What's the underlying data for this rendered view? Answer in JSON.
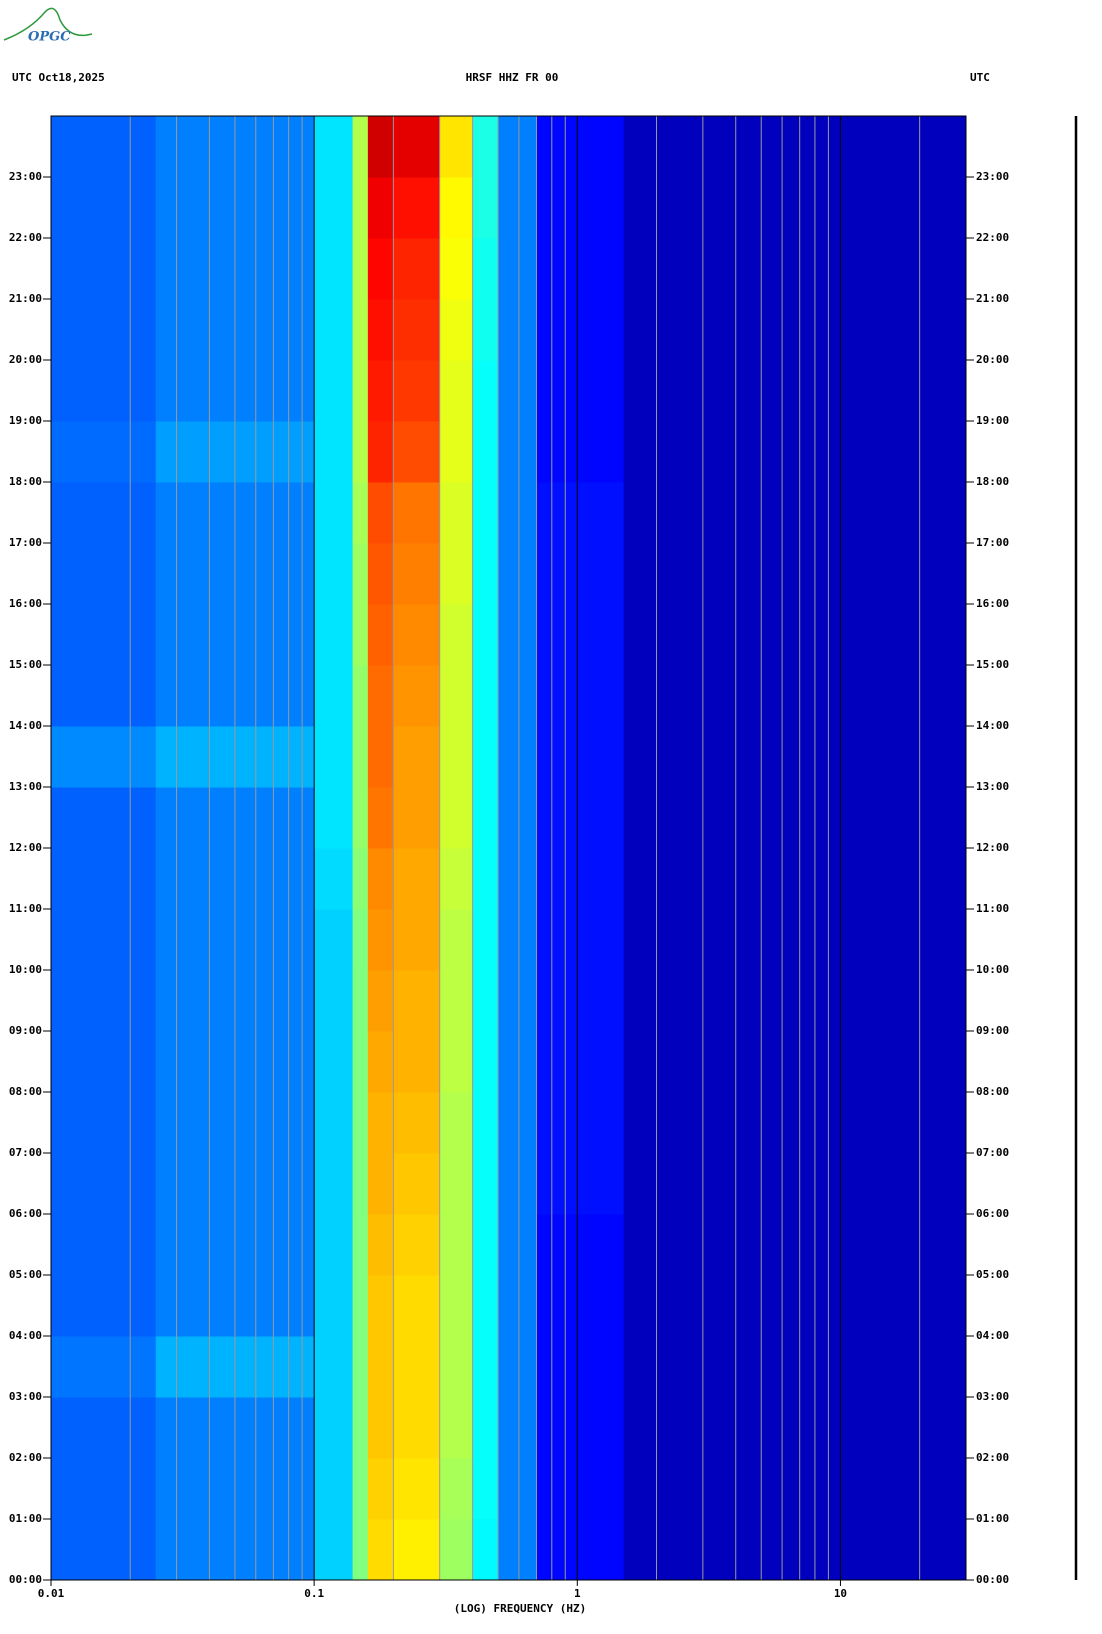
{
  "logo": "OPGC",
  "chart_data": {
    "type": "spectrogram",
    "title": "HRSF HHZ FR 00",
    "date_label": "UTC  Oct18,2025",
    "right_label": "UTC",
    "xlabel": "(LOG) FREQUENCY (HZ)",
    "log_x": true,
    "xlim": [
      0.01,
      30
    ],
    "xticks": [
      0.01,
      0.1,
      1,
      10
    ],
    "xminor": [
      0.02,
      0.03,
      0.04,
      0.05,
      0.06,
      0.07,
      0.08,
      0.09,
      0.2,
      0.3,
      0.4,
      0.5,
      0.6,
      0.7,
      0.8,
      0.9,
      2,
      3,
      4,
      5,
      6,
      7,
      8,
      9,
      20
    ],
    "ylim": [
      0,
      24
    ],
    "yticks": [
      {
        "value": 0,
        "label": "00:00"
      },
      {
        "value": 1,
        "label": "01:00"
      },
      {
        "value": 2,
        "label": "02:00"
      },
      {
        "value": 3,
        "label": "03:00"
      },
      {
        "value": 4,
        "label": "04:00"
      },
      {
        "value": 5,
        "label": "05:00"
      },
      {
        "value": 6,
        "label": "06:00"
      },
      {
        "value": 7,
        "label": "07:00"
      },
      {
        "value": 8,
        "label": "08:00"
      },
      {
        "value": 9,
        "label": "09:00"
      },
      {
        "value": 10,
        "label": "10:00"
      },
      {
        "value": 11,
        "label": "11:00"
      },
      {
        "value": 12,
        "label": "12:00"
      },
      {
        "value": 13,
        "label": "13:00"
      },
      {
        "value": 14,
        "label": "14:00"
      },
      {
        "value": 15,
        "label": "15:00"
      },
      {
        "value": 16,
        "label": "16:00"
      },
      {
        "value": 17,
        "label": "17:00"
      },
      {
        "value": 18,
        "label": "18:00"
      },
      {
        "value": 19,
        "label": "19:00"
      },
      {
        "value": 20,
        "label": "20:00"
      },
      {
        "value": 21,
        "label": "21:00"
      },
      {
        "value": 22,
        "label": "22:00"
      },
      {
        "value": 23,
        "label": "23:00"
      }
    ],
    "freq_bins": [
      0.01,
      0.025,
      0.1,
      0.14,
      0.16,
      0.2,
      0.3,
      0.4,
      0.5,
      0.7,
      1.5,
      30
    ],
    "time_bins": [
      0,
      1,
      2,
      3,
      4,
      5,
      6,
      7,
      8,
      9,
      10,
      11,
      12,
      13,
      14,
      15,
      16,
      17,
      18,
      19,
      20,
      21,
      22,
      23,
      24
    ],
    "colormap": "jet",
    "z": [
      [
        0.22,
        0.25,
        0.33,
        0.5,
        0.66,
        0.64,
        0.53,
        0.37,
        0.25,
        0.13,
        0.06
      ],
      [
        0.22,
        0.25,
        0.33,
        0.5,
        0.67,
        0.65,
        0.54,
        0.38,
        0.25,
        0.13,
        0.06
      ],
      [
        0.22,
        0.25,
        0.33,
        0.5,
        0.68,
        0.66,
        0.55,
        0.38,
        0.25,
        0.13,
        0.06
      ],
      [
        0.24,
        0.3,
        0.33,
        0.5,
        0.68,
        0.66,
        0.55,
        0.38,
        0.25,
        0.13,
        0.06
      ],
      [
        0.22,
        0.25,
        0.33,
        0.5,
        0.68,
        0.66,
        0.55,
        0.38,
        0.25,
        0.13,
        0.06
      ],
      [
        0.22,
        0.25,
        0.33,
        0.5,
        0.69,
        0.67,
        0.55,
        0.38,
        0.25,
        0.13,
        0.06
      ],
      [
        0.22,
        0.25,
        0.33,
        0.5,
        0.7,
        0.68,
        0.55,
        0.38,
        0.25,
        0.14,
        0.06
      ],
      [
        0.22,
        0.25,
        0.33,
        0.5,
        0.7,
        0.69,
        0.55,
        0.38,
        0.25,
        0.14,
        0.06
      ],
      [
        0.22,
        0.25,
        0.33,
        0.5,
        0.71,
        0.7,
        0.56,
        0.38,
        0.25,
        0.14,
        0.06
      ],
      [
        0.22,
        0.25,
        0.33,
        0.5,
        0.72,
        0.7,
        0.56,
        0.38,
        0.25,
        0.14,
        0.06
      ],
      [
        0.22,
        0.25,
        0.33,
        0.5,
        0.73,
        0.71,
        0.56,
        0.38,
        0.25,
        0.14,
        0.06
      ],
      [
        0.22,
        0.25,
        0.34,
        0.51,
        0.74,
        0.71,
        0.57,
        0.38,
        0.25,
        0.14,
        0.06
      ],
      [
        0.22,
        0.25,
        0.35,
        0.52,
        0.76,
        0.72,
        0.58,
        0.38,
        0.25,
        0.14,
        0.06
      ],
      [
        0.26,
        0.3,
        0.35,
        0.52,
        0.77,
        0.72,
        0.58,
        0.38,
        0.25,
        0.14,
        0.06
      ],
      [
        0.22,
        0.25,
        0.35,
        0.52,
        0.77,
        0.73,
        0.58,
        0.38,
        0.25,
        0.14,
        0.06
      ],
      [
        0.22,
        0.25,
        0.35,
        0.53,
        0.78,
        0.74,
        0.58,
        0.38,
        0.25,
        0.14,
        0.06
      ],
      [
        0.22,
        0.25,
        0.35,
        0.53,
        0.79,
        0.75,
        0.59,
        0.38,
        0.25,
        0.14,
        0.06
      ],
      [
        0.22,
        0.25,
        0.35,
        0.54,
        0.8,
        0.76,
        0.59,
        0.38,
        0.25,
        0.14,
        0.06
      ],
      [
        0.23,
        0.28,
        0.35,
        0.55,
        0.84,
        0.8,
        0.6,
        0.38,
        0.25,
        0.13,
        0.06
      ],
      [
        0.22,
        0.25,
        0.35,
        0.55,
        0.85,
        0.82,
        0.6,
        0.38,
        0.25,
        0.13,
        0.06
      ],
      [
        0.22,
        0.25,
        0.35,
        0.55,
        0.86,
        0.83,
        0.61,
        0.39,
        0.25,
        0.13,
        0.06
      ],
      [
        0.22,
        0.25,
        0.35,
        0.55,
        0.87,
        0.84,
        0.62,
        0.39,
        0.25,
        0.13,
        0.06
      ],
      [
        0.22,
        0.25,
        0.35,
        0.55,
        0.89,
        0.86,
        0.63,
        0.4,
        0.25,
        0.13,
        0.06
      ],
      [
        0.22,
        0.25,
        0.35,
        0.55,
        0.92,
        0.9,
        0.65,
        0.4,
        0.25,
        0.13,
        0.06
      ]
    ]
  }
}
